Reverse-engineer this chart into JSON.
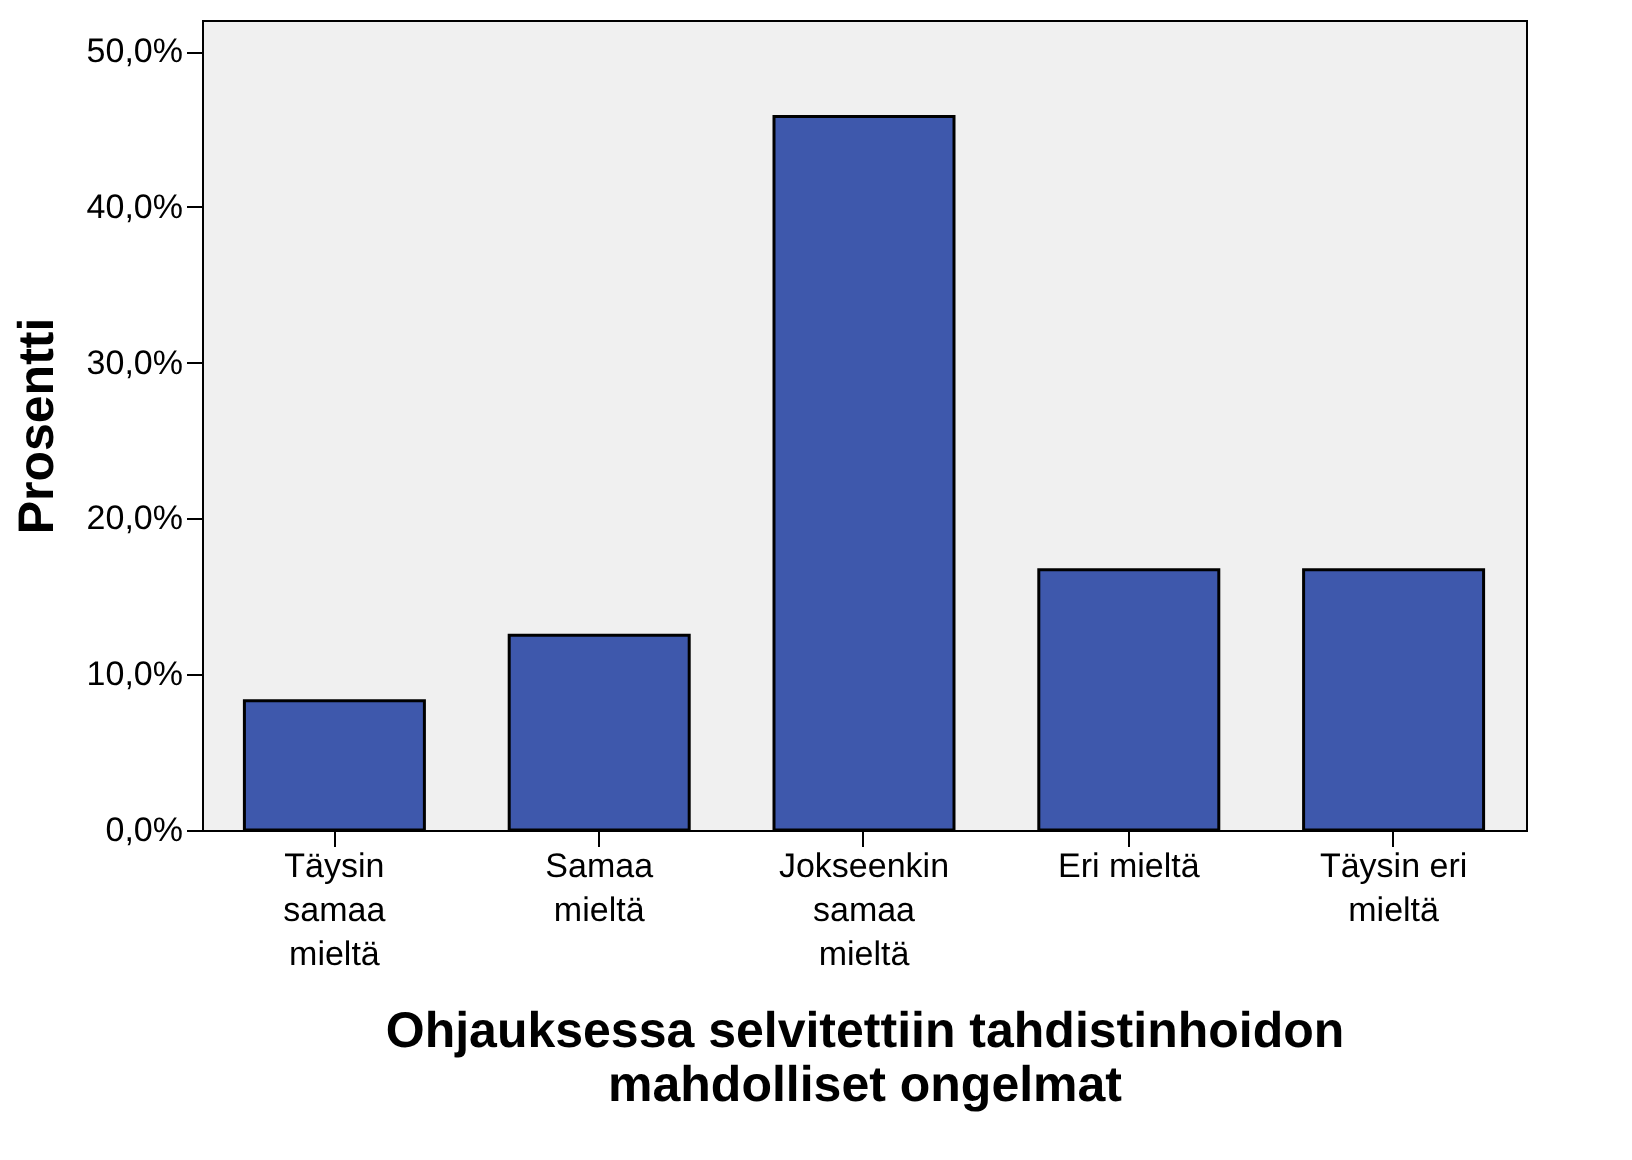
{
  "chart_data": {
    "type": "bar",
    "xlabel": "Ohjauksessa selvitettiin tahdistinhoidon mahdolliset ongelmat",
    "ylabel": "Prosentti",
    "categories": [
      "Täysin samaa mieltä",
      "Samaa mieltä",
      "Jokseenkin samaa mieltä",
      "Eri mieltä",
      "Täysin eri mieltä"
    ],
    "values": [
      8.3,
      12.5,
      45.8,
      16.7,
      16.7
    ],
    "color": "#3e58ac",
    "ylim": [
      0,
      52
    ],
    "yticks": [
      {
        "value": 0,
        "label": "0,0%"
      },
      {
        "value": 10,
        "label": "10,0%"
      },
      {
        "value": 20,
        "label": "20,0%"
      },
      {
        "value": 30,
        "label": "30,0%"
      },
      {
        "value": 40,
        "label": "40,0%"
      },
      {
        "value": 50,
        "label": "50,0%"
      }
    ],
    "grid": false
  }
}
